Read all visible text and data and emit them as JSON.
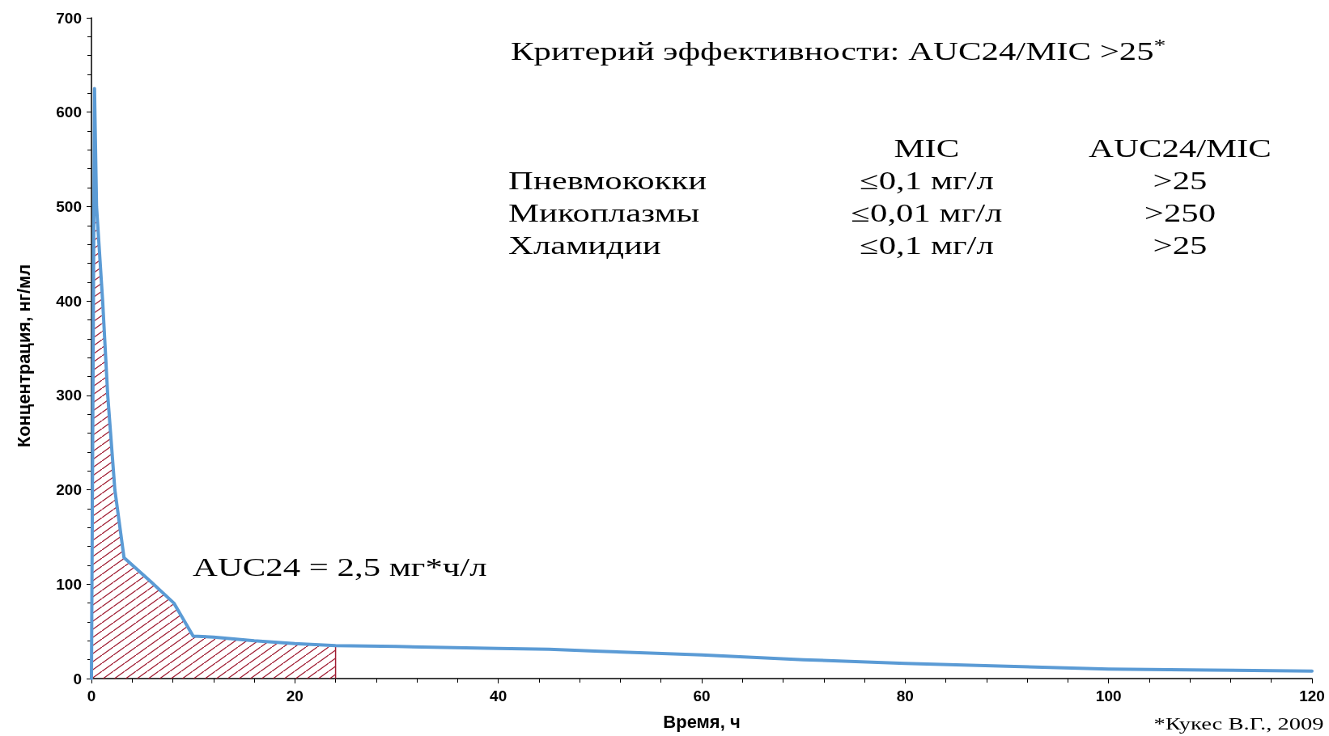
{
  "chart_data": {
    "type": "line",
    "title": "Критерий эффективности: AUC24/MIC >25$^{*}$",
    "xlabel": "Время, ч",
    "ylabel": "Концентрация, нг/мл",
    "xlim": [
      0,
      120
    ],
    "xticks": [
      0,
      20,
      40,
      60,
      80,
      100,
      120
    ],
    "ylim": [
      0,
      700
    ],
    "yticks": [
      0,
      100,
      200,
      300,
      400,
      500,
      600,
      700
    ],
    "grid": false,
    "marker": "none",
    "line_style": "solid",
    "series": [
      {
        "type": "area",
        "color": "#a01c32",
        "x": [
          0,
          0.3,
          0.5,
          1.1,
          1.6,
          2.3,
          3.2,
          5.8,
          8.1,
          10,
          12,
          16,
          20,
          24,
          24
        ],
        "values": [
          0,
          625,
          500,
          400,
          300,
          200,
          128,
          103,
          80,
          45,
          44,
          40,
          37,
          35,
          0
        ]
      },
      {
        "color": "#5b9bd5",
        "x": [
          0,
          0.3,
          0.5,
          1.1,
          1.6,
          2.3,
          3.2,
          5.8,
          8.1,
          10,
          12,
          16,
          20,
          24,
          30,
          40,
          45,
          50,
          60,
          70,
          80,
          90,
          100,
          110,
          120
        ],
        "values": [
          0,
          625,
          500,
          400,
          300,
          200,
          128,
          103,
          80,
          45,
          44,
          40,
          37,
          35,
          34,
          32,
          31,
          29,
          25,
          20,
          16,
          13,
          10,
          9,
          8
        ]
      }
    ],
    "annotations": [
      "AUC24 = 2,5 мг*ч/л",
      "MIC",
      "AUC24/MIC",
      "Пневмококки",
      "≤0,1 мг/л",
      ">25",
      "Микоплазмы",
      "≤0,01 мг/л",
      ">250",
      "Хламидии",
      "≤0,1 мг/л",
      ">25",
      "*Кукес В.Г., 2009"
    ]
  }
}
